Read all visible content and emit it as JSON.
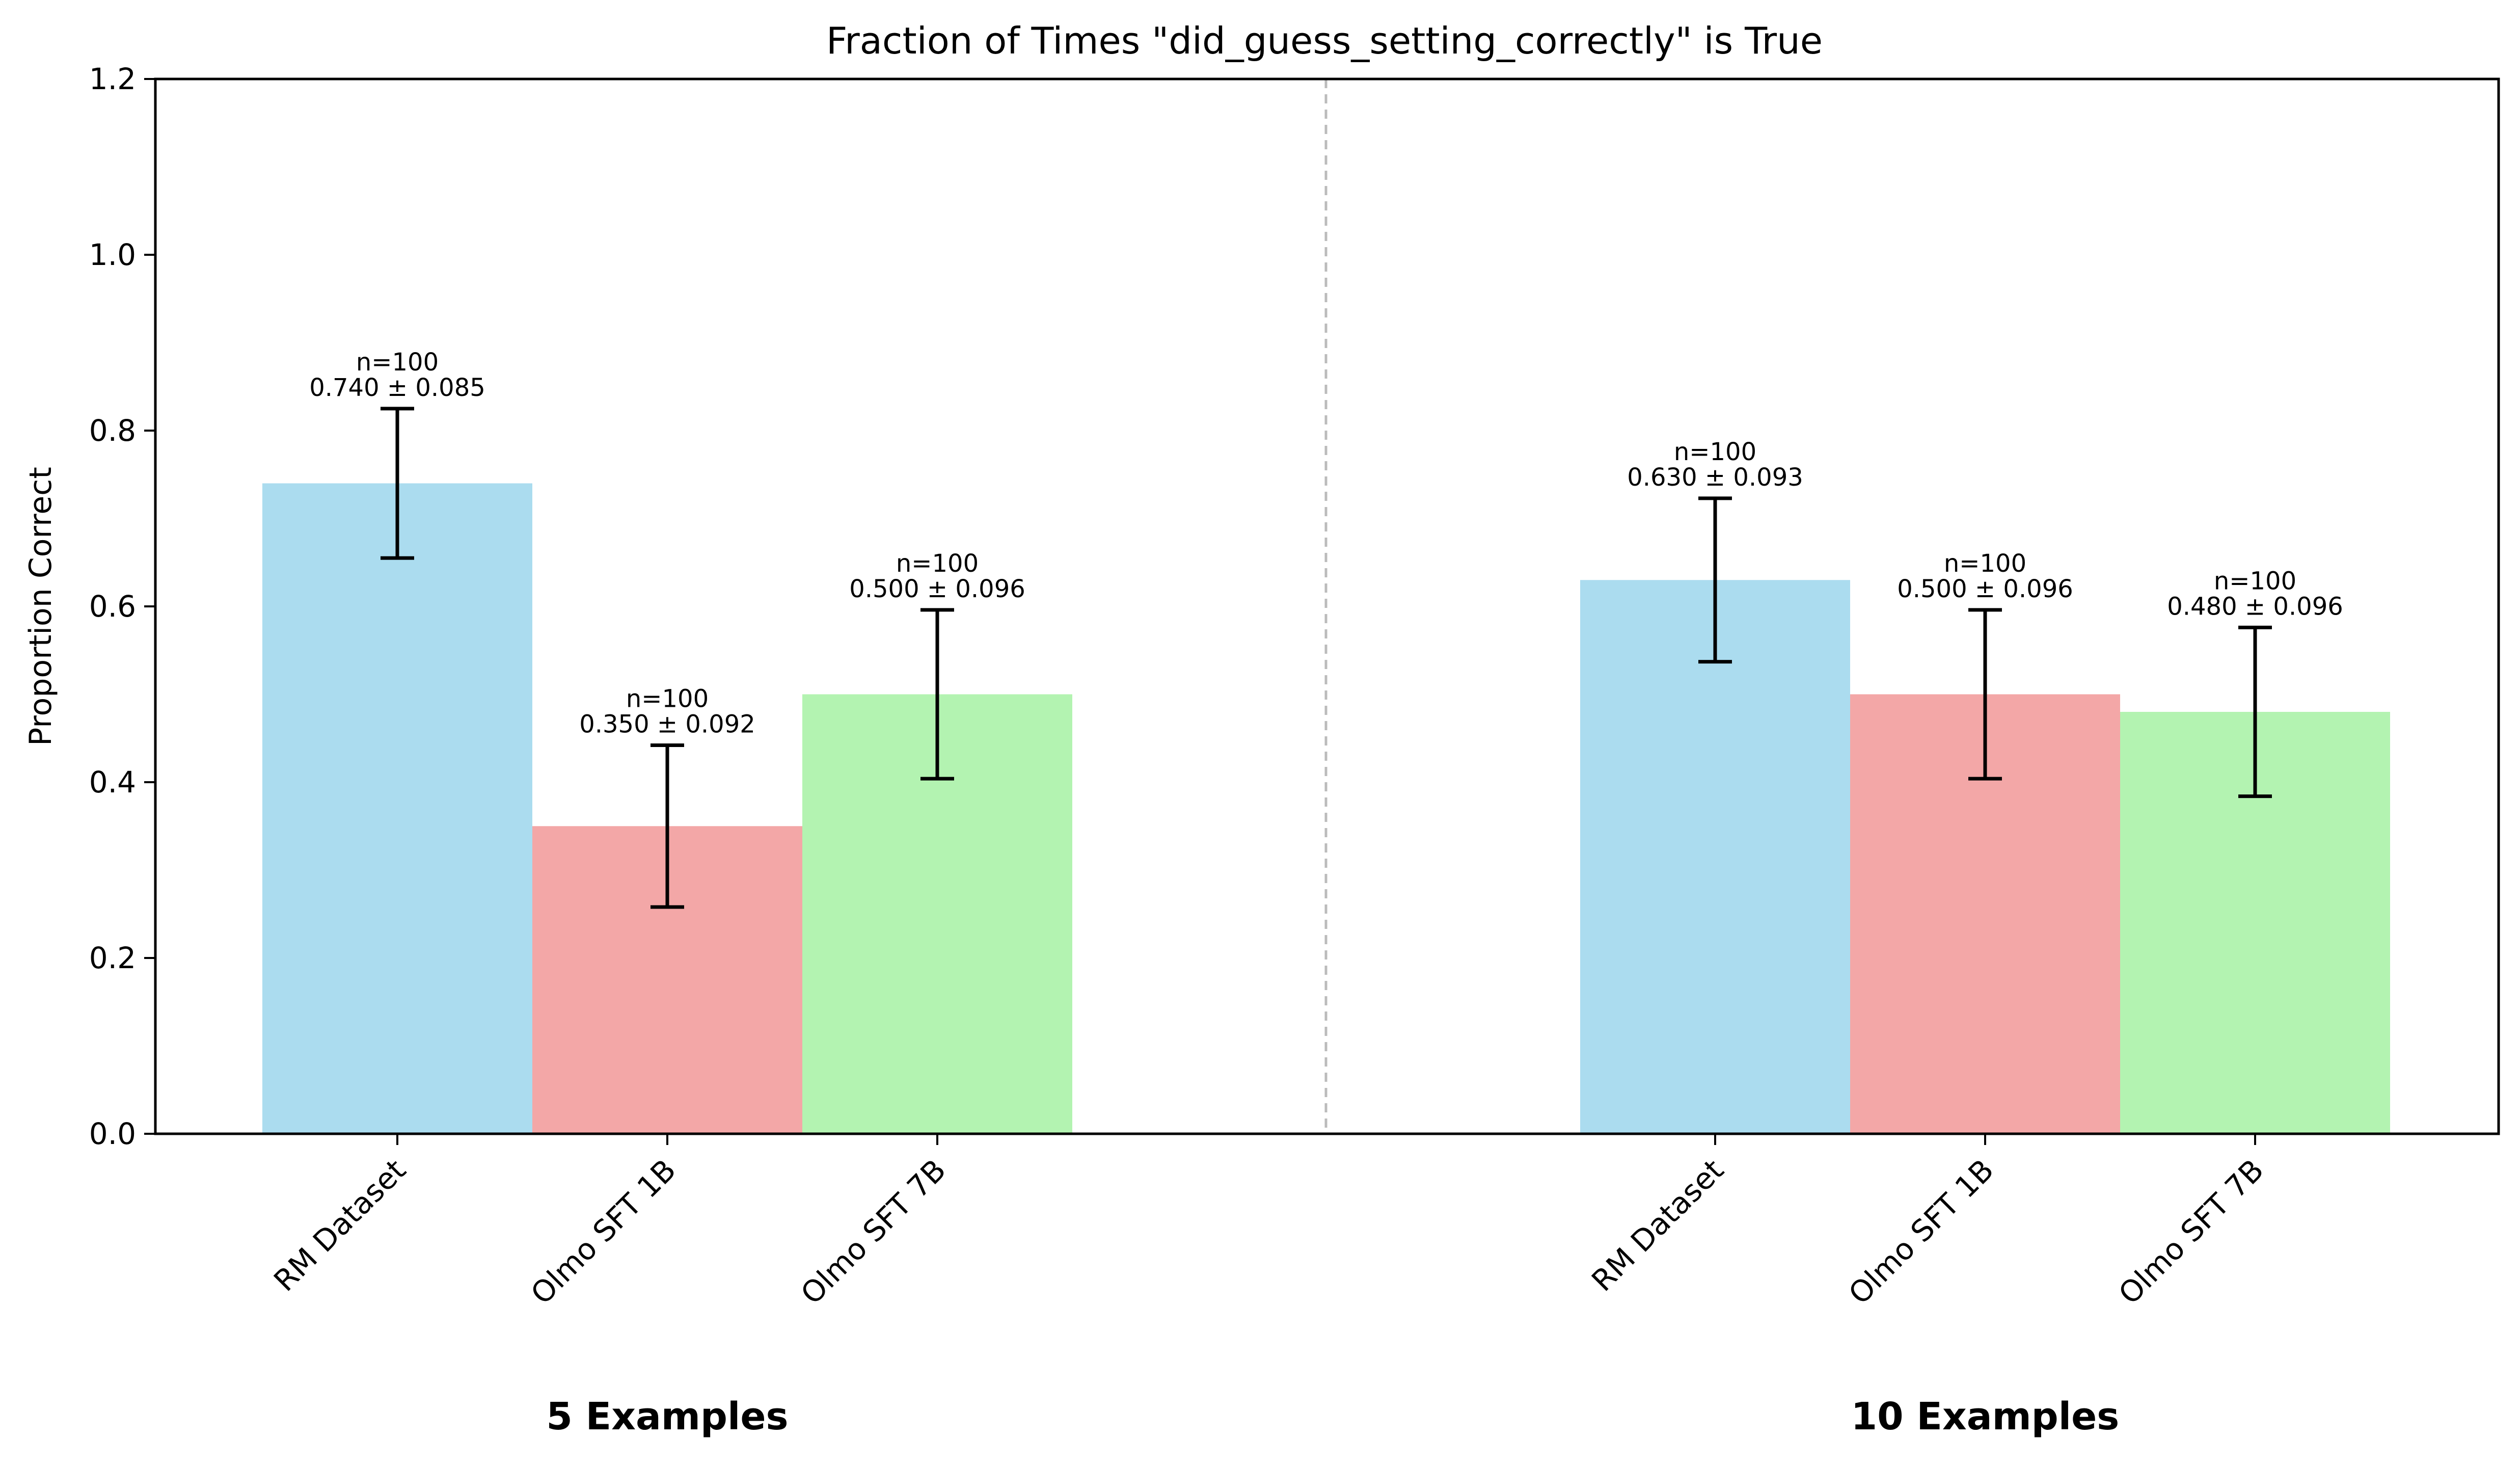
{
  "chart_data": {
    "type": "bar",
    "title": "Fraction of Times \"did_guess_setting_correctly\" is True",
    "xlabel": "",
    "ylabel": "Proportion Correct",
    "ylim": [
      0,
      1.2
    ],
    "yticks": [
      "0.0",
      "0.2",
      "0.4",
      "0.6",
      "0.8",
      "1.0",
      "1.2"
    ],
    "grid": false,
    "legend": "none",
    "groups": [
      {
        "label": "5 Examples",
        "bars": [
          {
            "category": "RM Dataset",
            "value": 0.74,
            "error": 0.085,
            "n_label": "n=100",
            "value_label": "0.740 ± 0.085",
            "color": "#ABDCEF"
          },
          {
            "category": "Olmo SFT 1B",
            "value": 0.35,
            "error": 0.092,
            "n_label": "n=100",
            "value_label": "0.350 ± 0.092",
            "color": "#F3A7A7"
          },
          {
            "category": "Olmo SFT 7B",
            "value": 0.5,
            "error": 0.096,
            "n_label": "n=100",
            "value_label": "0.500 ± 0.096",
            "color": "#B3F3B1"
          }
        ]
      },
      {
        "label": "10 Examples",
        "bars": [
          {
            "category": "RM Dataset",
            "value": 0.63,
            "error": 0.093,
            "n_label": "n=100",
            "value_label": "0.630 ± 0.093",
            "color": "#ABDCEF"
          },
          {
            "category": "Olmo SFT 1B",
            "value": 0.5,
            "error": 0.096,
            "n_label": "n=100",
            "value_label": "0.500 ± 0.096",
            "color": "#F3A7A7"
          },
          {
            "category": "Olmo SFT 7B",
            "value": 0.48,
            "error": 0.096,
            "n_label": "n=100",
            "value_label": "0.480 ± 0.096",
            "color": "#B3F3B1"
          }
        ]
      }
    ],
    "separator": {
      "style": "dashed",
      "color": "#BBBBBB"
    }
  }
}
